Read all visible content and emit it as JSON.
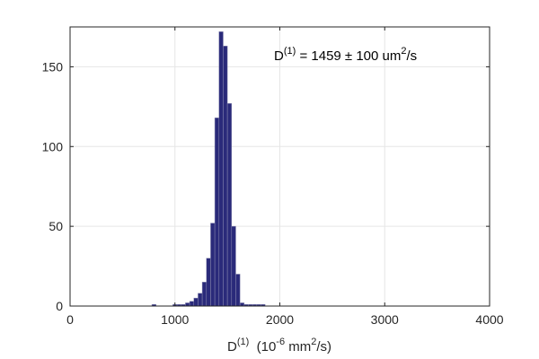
{
  "chart_data": {
    "type": "bar",
    "xlabel": {
      "base": "D",
      "sup": "(1)",
      "rest": "  (10",
      "exp": "-6",
      "unit": " mm",
      "unit_sup": "2",
      "tail": "/s)"
    },
    "ylabel": "",
    "xlim": [
      0,
      4000
    ],
    "ylim": [
      0,
      175
    ],
    "xticks": [
      0,
      1000,
      2000,
      3000,
      4000
    ],
    "yticks": [
      0,
      50,
      100,
      150
    ],
    "grid": true,
    "annotation": {
      "base": "D",
      "sup": "(1)",
      "middle": " = 1459 ± 100 um",
      "unit_sup": "2",
      "tail": "/s"
    },
    "bar_color": "#2a2a7a",
    "bin_width": 40,
    "bins": [
      {
        "x0": 780,
        "value": 1
      },
      {
        "x0": 820,
        "value": 0
      },
      {
        "x0": 860,
        "value": 0
      },
      {
        "x0": 900,
        "value": 0
      },
      {
        "x0": 940,
        "value": 0
      },
      {
        "x0": 980,
        "value": 1
      },
      {
        "x0": 1020,
        "value": 1
      },
      {
        "x0": 1060,
        "value": 1
      },
      {
        "x0": 1100,
        "value": 2
      },
      {
        "x0": 1140,
        "value": 3
      },
      {
        "x0": 1180,
        "value": 5
      },
      {
        "x0": 1220,
        "value": 8
      },
      {
        "x0": 1260,
        "value": 15
      },
      {
        "x0": 1300,
        "value": 30
      },
      {
        "x0": 1340,
        "value": 52
      },
      {
        "x0": 1380,
        "value": 118
      },
      {
        "x0": 1420,
        "value": 172
      },
      {
        "x0": 1460,
        "value": 163
      },
      {
        "x0": 1500,
        "value": 127
      },
      {
        "x0": 1540,
        "value": 50
      },
      {
        "x0": 1580,
        "value": 20
      },
      {
        "x0": 1620,
        "value": 2
      },
      {
        "x0": 1660,
        "value": 1
      },
      {
        "x0": 1700,
        "value": 1
      },
      {
        "x0": 1740,
        "value": 1
      },
      {
        "x0": 1780,
        "value": 1
      },
      {
        "x0": 1820,
        "value": 1
      }
    ]
  }
}
